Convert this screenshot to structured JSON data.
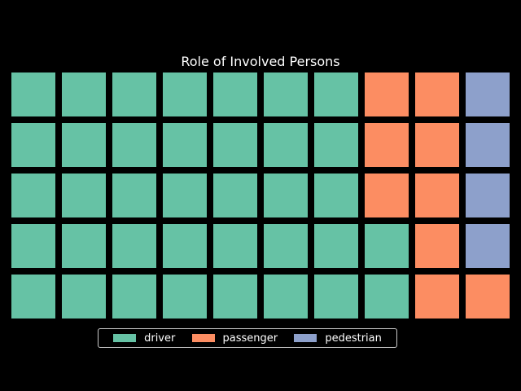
{
  "chart_data": {
    "type": "waffle",
    "title": "Role of Involved Persons",
    "grid": {
      "rows": 5,
      "columns": 10
    },
    "categories": [
      "driver",
      "passenger",
      "pedestrian"
    ],
    "values": [
      37,
      9,
      4
    ],
    "colors": [
      "#66c2a5",
      "#fc8d62",
      "#8da0cb"
    ],
    "legend": "bottom-center"
  }
}
